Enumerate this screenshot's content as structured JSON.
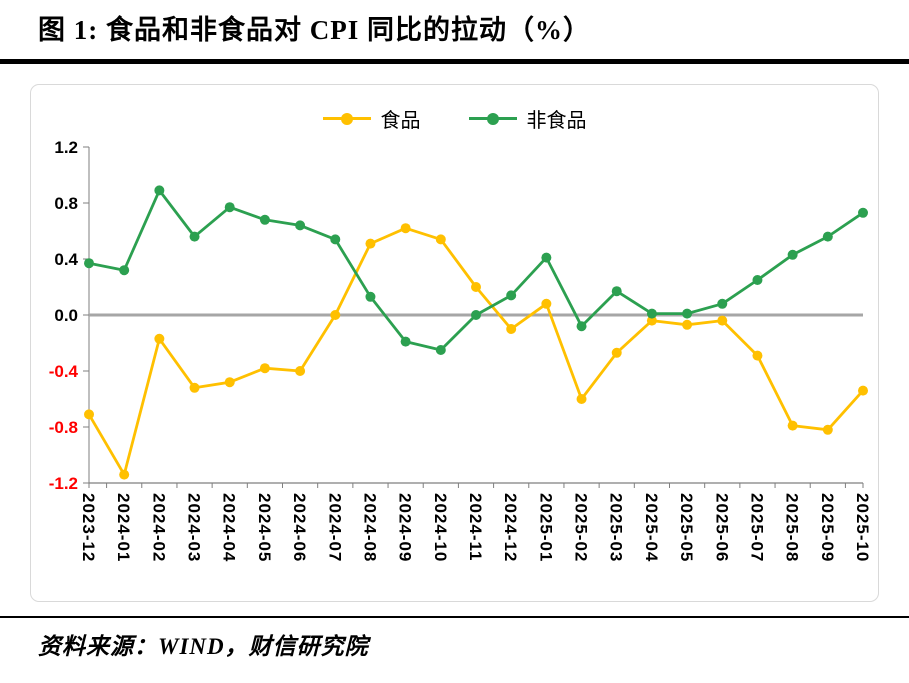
{
  "title": "图 1:  食品和非食品对 CPI 同比的拉动（%）",
  "source": "资料来源：WIND，财信研究院",
  "colors": {
    "food": "#FFC000",
    "nonfood": "#2CA050",
    "zero_line": "#A6A6A6",
    "axis": "#7F7F7F",
    "negative_tick": "#FF0000",
    "positive_tick": "#000000"
  },
  "chart_data": {
    "type": "line",
    "title": "食品和非食品对 CPI 同比的拉动（%）",
    "xlabel": "",
    "ylabel": "",
    "ylim": [
      -1.2,
      1.2
    ],
    "yticks": [
      1.2,
      0.8,
      0.4,
      0,
      -0.4,
      -0.8,
      -1.2
    ],
    "grid": false,
    "legend_position": "top",
    "categories": [
      "2023-12",
      "2024-01",
      "2024-02",
      "2024-03",
      "2024-04",
      "2024-05",
      "2024-06",
      "2024-07",
      "2024-08",
      "2024-09",
      "2024-10",
      "2024-11",
      "2024-12",
      "2025-01",
      "2025-02",
      "2025-03",
      "2025-04",
      "2025-05",
      "2025-06",
      "2025-07",
      "2025-08",
      "2025-09",
      "2025-10"
    ],
    "series": [
      {
        "name": "食品",
        "color": "#FFC000",
        "values": [
          -0.71,
          -1.14,
          -0.17,
          -0.52,
          -0.48,
          -0.38,
          -0.4,
          0.0,
          0.51,
          0.62,
          0.54,
          0.2,
          -0.1,
          0.08,
          -0.6,
          -0.27,
          -0.04,
          -0.07,
          -0.04,
          -0.29,
          -0.79,
          -0.82,
          -0.54
        ]
      },
      {
        "name": "非食品",
        "color": "#2CA050",
        "values": [
          0.37,
          0.32,
          0.89,
          0.56,
          0.77,
          0.68,
          0.64,
          0.54,
          0.13,
          -0.19,
          -0.25,
          0.0,
          0.14,
          0.41,
          -0.08,
          0.17,
          0.01,
          0.01,
          0.08,
          0.25,
          0.43,
          0.56,
          0.73
        ]
      }
    ]
  }
}
